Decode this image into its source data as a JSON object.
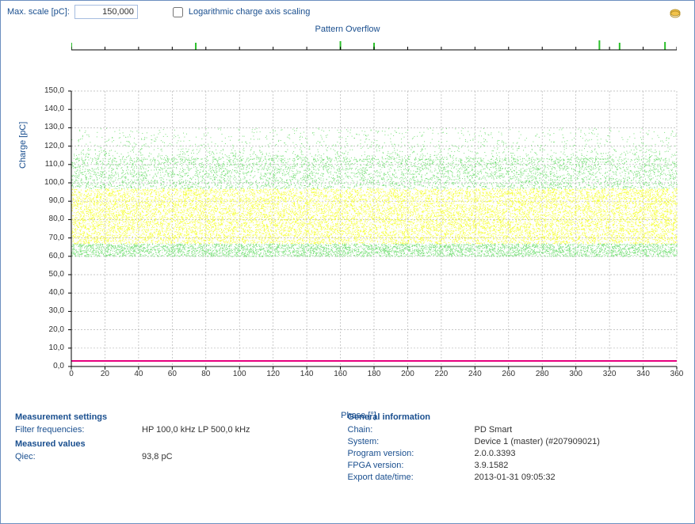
{
  "controls": {
    "max_scale_label": "Max. scale [pC]:",
    "max_scale_value": "150,000",
    "log_label": "Logarithmic charge axis scaling",
    "log_checked": false
  },
  "overflow": {
    "title": "Pattern Overflow",
    "range_min": 0,
    "range_max": 360,
    "majors": [
      0,
      20,
      40,
      60,
      80,
      100,
      120,
      140,
      160,
      180,
      200,
      220,
      240,
      260,
      280,
      300,
      320,
      340,
      360
    ],
    "markers": [
      {
        "x": 0,
        "h": 9,
        "col": "#2bbf2b"
      },
      {
        "x": 74,
        "h": 9,
        "col": "#2bbf2b"
      },
      {
        "x": 160,
        "h": 11,
        "col": "#2bbf2b"
      },
      {
        "x": 180,
        "h": 9,
        "col": "#2bbf2b"
      },
      {
        "x": 314,
        "h": 12,
        "col": "#2bbf2b"
      },
      {
        "x": 326,
        "h": 9,
        "col": "#2bbf2b"
      },
      {
        "x": 353,
        "h": 10,
        "col": "#2bbf2b"
      }
    ]
  },
  "chart": {
    "type": "scatter",
    "xlabel": "Phase [°]",
    "ylabel": "Charge [pC]",
    "xlim": [
      0,
      360
    ],
    "ylim": [
      0,
      150
    ],
    "xticks": [
      0,
      20,
      40,
      60,
      80,
      100,
      120,
      140,
      160,
      180,
      200,
      220,
      240,
      260,
      280,
      300,
      320,
      340,
      360
    ],
    "yticks": [
      0,
      10,
      20,
      30,
      40,
      50,
      60,
      70,
      80,
      90,
      100,
      110,
      120,
      130,
      140,
      150
    ],
    "ytick_format": ",0",
    "grid_color": "#b5b5b5",
    "grid_dash": "2,2",
    "axis_color": "#000000",
    "tick_font_size": 10,
    "label_font_size": 11,
    "label_color": "#1a4f8f",
    "background_color": "#ffffff",
    "pd_band": {
      "dense": {
        "ymin": 67,
        "ymax": 97,
        "color": "#f6ff3a"
      },
      "outer": {
        "ymin": 60,
        "ymax": 113,
        "color": "#7be07b"
      },
      "sparse_max": 130,
      "seed": 17
    },
    "threshold_line": {
      "y": 3,
      "color": "#e6007e",
      "width": 2
    }
  },
  "info": {
    "measurement_settings_hdr": "Measurement settings",
    "filter_freq_label": "Filter frequencies:",
    "filter_freq_value": "HP 100,0 kHz    LP 500,0 kHz",
    "measured_values_hdr": "Measured values",
    "qiec_label": "Qiec:",
    "qiec_value": "93,8 pC",
    "general_info_hdr": "General information",
    "chain_label": "Chain:",
    "chain_value": "PD Smart",
    "system_label": "System:",
    "system_value": "Device 1 (master) (#207909021)",
    "program_label": "Program version:",
    "program_value": "2.0.0.3393",
    "fpga_label": "FPGA version:",
    "fpga_value": "3.9.1582",
    "export_label": "Export date/time:",
    "export_value": "2013-01-31 09:05:32"
  }
}
